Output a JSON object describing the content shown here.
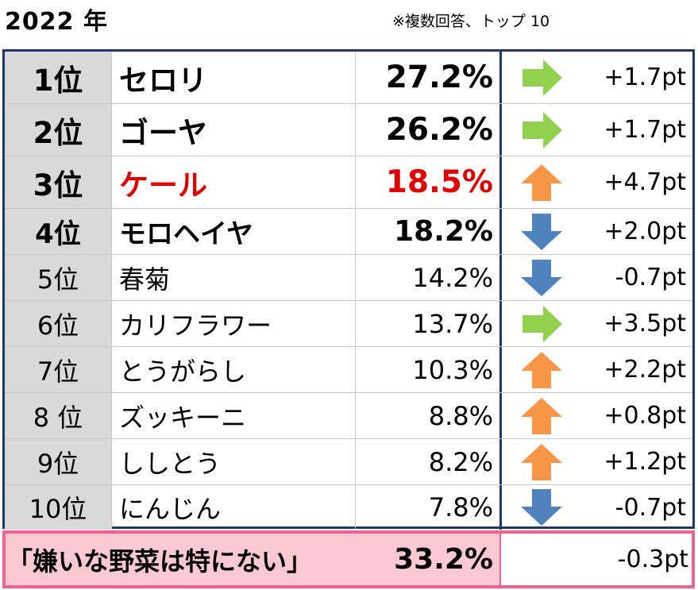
{
  "header": {
    "title": "2022 年",
    "note": "※複数回答、トップ 10"
  },
  "colors": {
    "border": "#1f3864",
    "rank_bg": "#d9d9d9",
    "highlight_text": "#e00000",
    "arrow_right": "#92d050",
    "arrow_up": "#f79646",
    "arrow_down": "#4f81bd",
    "summary_border": "#f06292",
    "summary_bg": "#fbc9d2"
  },
  "chart_data": {
    "type": "table",
    "columns": [
      "rank",
      "vegetable",
      "percent",
      "trend",
      "change"
    ],
    "rows": [
      {
        "rank": "1位",
        "name": "セロリ",
        "value": "27.2%",
        "trend": "right-arrow-icon",
        "change": "+1.7pt"
      },
      {
        "rank": "2位",
        "name": "ゴーヤ",
        "value": "26.2%",
        "trend": "right-arrow-icon",
        "change": "+1.7pt"
      },
      {
        "rank": "3位",
        "name": "ケール",
        "value": "18.5%",
        "trend": "up-arrow-icon",
        "change": "+4.7pt"
      },
      {
        "rank": "4位",
        "name": "モロヘイヤ",
        "value": "18.2%",
        "trend": "down-arrow-icon",
        "change": "+2.0pt"
      },
      {
        "rank": "5位",
        "name": "春菊",
        "value": "14.2%",
        "trend": "down-arrow-icon",
        "change": "-0.7pt"
      },
      {
        "rank": "6位",
        "name": "カリフラワー",
        "value": "13.7%",
        "trend": "right-arrow-icon",
        "change": "+3.5pt"
      },
      {
        "rank": "7位",
        "name": "とうがらし",
        "value": "10.3%",
        "trend": "up-arrow-icon",
        "change": "+2.2pt"
      },
      {
        "rank": "8 位",
        "name": "ズッキーニ",
        "value": "8.8%",
        "trend": "up-arrow-icon",
        "change": "+0.8pt"
      },
      {
        "rank": "9位",
        "name": "ししとう",
        "value": "8.2%",
        "trend": "up-arrow-icon",
        "change": "+1.2pt"
      },
      {
        "rank": "10位",
        "name": "にんじん",
        "value": "7.8%",
        "trend": "down-arrow-icon",
        "change": "-0.7pt"
      }
    ],
    "summary": {
      "label": "「嫌いな野菜は特にない」",
      "value": "33.2%",
      "change": "-0.3pt"
    }
  }
}
